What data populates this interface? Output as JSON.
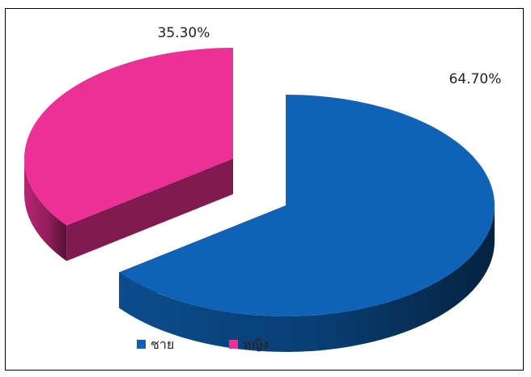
{
  "chart_data": {
    "type": "pie",
    "style": "3d-exploded",
    "categories": [
      "ชาย",
      "หญิง"
    ],
    "values": [
      64.7,
      35.3
    ],
    "data_labels": [
      "64.70%",
      "35.30%"
    ],
    "colors": [
      "#0f62b6",
      "#ec3095"
    ],
    "legend_position": "bottom-left",
    "title": ""
  }
}
